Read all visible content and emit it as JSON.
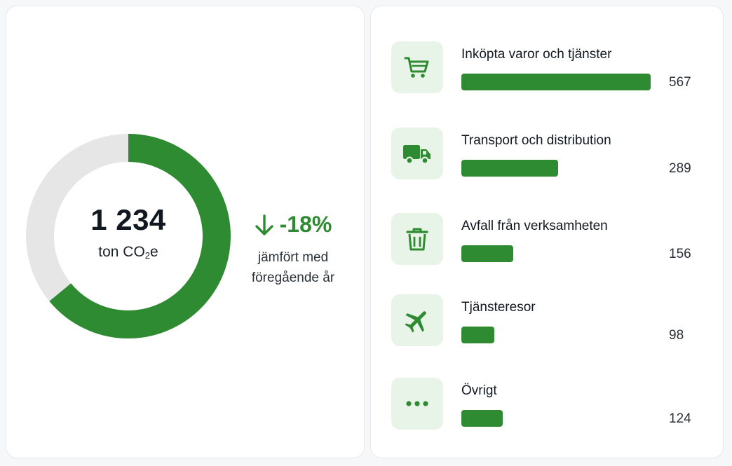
{
  "colors": {
    "accent": "#2e8b32",
    "track": "#e6e6e6",
    "icon_bg": "#e9f4e8"
  },
  "summary": {
    "total": "1 234",
    "unit_prefix": "ton CO",
    "unit_sub": "2",
    "unit_suffix": "e",
    "change": "-18%",
    "change_icon": "arrow-down-icon",
    "note_line1": "jämfört med",
    "note_line2": "föregående år"
  },
  "chart_data": [
    {
      "type": "pie",
      "variant": "donut",
      "values": [
        1234
      ],
      "filled_fraction": 0.64
    },
    {
      "type": "bar",
      "orientation": "horizontal",
      "categories": [
        "Inköpta varor och tjänster",
        "Transport och distribution",
        "Avfall från verksamheten",
        "Tjänsteresor",
        "Övrigt"
      ],
      "values": [
        567,
        289,
        156,
        98,
        124
      ],
      "value_labels": [
        "567",
        "289",
        "156",
        "98",
        "124"
      ],
      "icons": [
        "cart-icon",
        "truck-icon",
        "trash-icon",
        "airplane-icon",
        "more-dots-icon"
      ],
      "xlim": [
        0,
        567
      ]
    }
  ]
}
